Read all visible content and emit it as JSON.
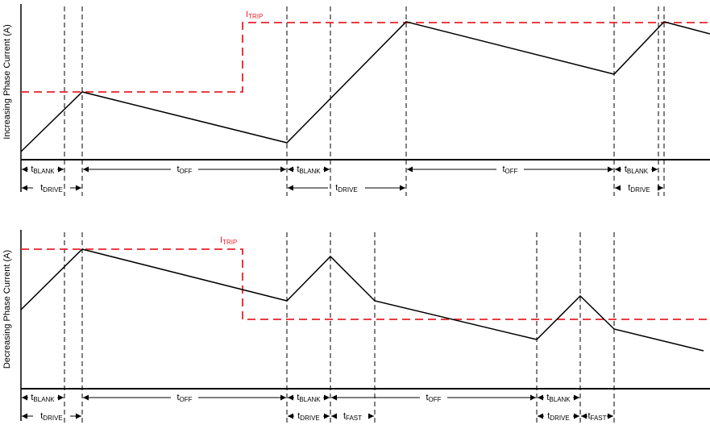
{
  "colors": {
    "waveform": "#000000",
    "trip": "#e8222a",
    "axis": "#000000"
  },
  "panels": [
    {
      "ylabel": "Increasing Phase Current (A)",
      "trip_label": {
        "base": "I",
        "sub": "TRIP"
      },
      "row1": [
        {
          "base": "t",
          "sub": "BLANK"
        },
        {
          "base": "t",
          "sub": "OFF"
        },
        {
          "base": "t",
          "sub": "BLANK"
        },
        {
          "base": "t",
          "sub": "OFF"
        },
        {
          "base": "t",
          "sub": "BLANK"
        }
      ],
      "row2": [
        {
          "base": "t",
          "sub": "DRIVE"
        },
        {
          "base": "t",
          "sub": "DRIVE"
        },
        {
          "base": "t",
          "sub": "DRIVE"
        }
      ]
    },
    {
      "ylabel": "Decreasing Phase Current (A)",
      "trip_label": {
        "base": "I",
        "sub": "TRIP"
      },
      "row1": [
        {
          "base": "t",
          "sub": "BLANK"
        },
        {
          "base": "t",
          "sub": "OFF"
        },
        {
          "base": "t",
          "sub": "BLANK"
        },
        {
          "base": "t",
          "sub": "OFF"
        },
        {
          "base": "t",
          "sub": "BLANK"
        }
      ],
      "row2": [
        {
          "base": "t",
          "sub": "DRIVE"
        },
        {
          "base": "t",
          "sub": "DRIVE"
        },
        {
          "base": "t",
          "sub": "FAST"
        },
        {
          "base": "t",
          "sub": "DRIVE"
        },
        {
          "base": "t",
          "sub": "FAST"
        }
      ]
    }
  ]
}
